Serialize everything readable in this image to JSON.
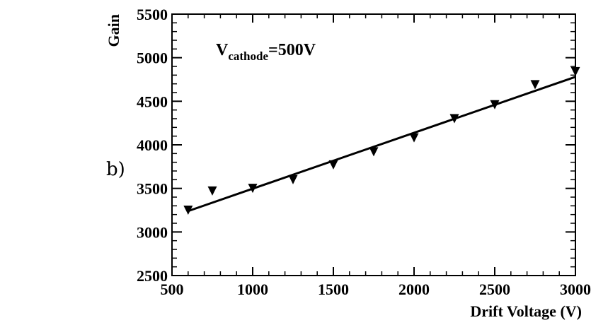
{
  "panel_label": "b)",
  "chart_data": {
    "type": "scatter",
    "title": "",
    "xlabel": "Drift Voltage (V)",
    "ylabel": "Gain",
    "xlim": [
      500,
      3000
    ],
    "ylim": [
      2500,
      5500
    ],
    "xticks": [
      500,
      1000,
      1500,
      2000,
      2500,
      3000
    ],
    "yticks": [
      2500,
      3000,
      3500,
      4000,
      4500,
      5000,
      5500
    ],
    "grid": false,
    "annotation": {
      "base": "V",
      "subscript": "cathode",
      "rest": "=500V"
    },
    "series": [
      {
        "marker": "triangle-down",
        "color": "#000000",
        "x": [
          600,
          750,
          1000,
          1250,
          1500,
          1750,
          2000,
          2250,
          2500,
          2750,
          3000
        ],
        "y": [
          3250,
          3470,
          3500,
          3600,
          3770,
          3920,
          4080,
          4300,
          4460,
          4690,
          4840
        ]
      }
    ],
    "fit_line": {
      "x": [
        600,
        3000
      ],
      "y": [
        3240,
        4780
      ]
    }
  }
}
